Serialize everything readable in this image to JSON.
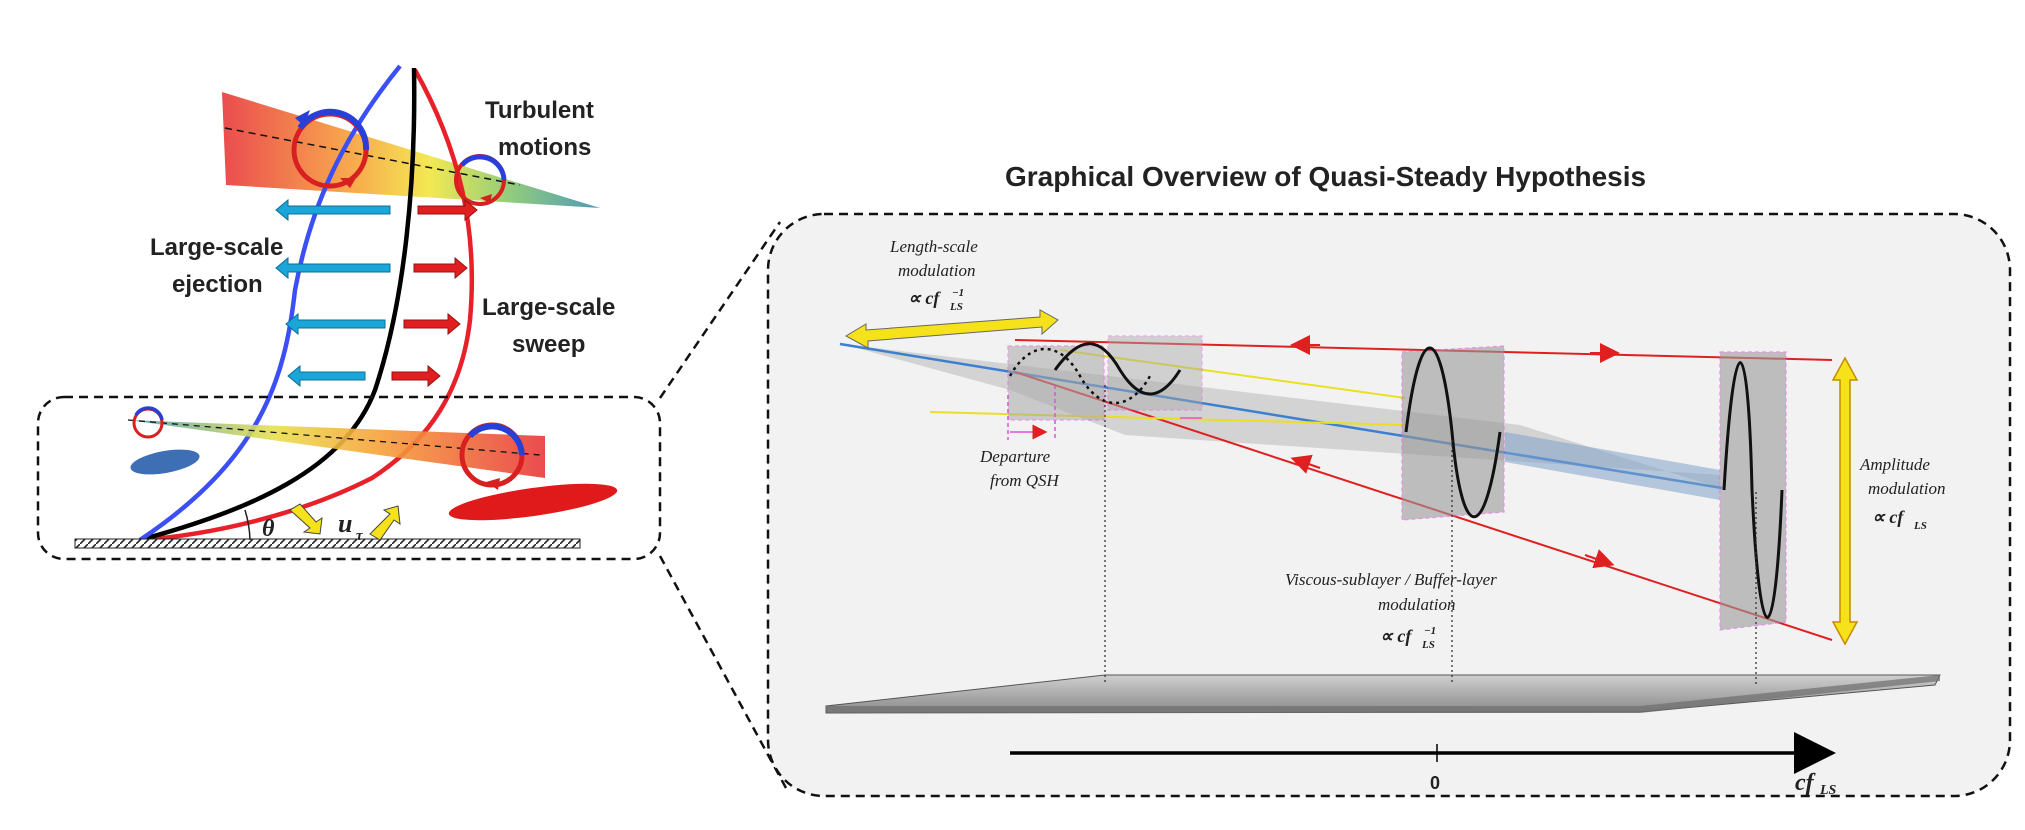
{
  "title": "Graphical Overview of Quasi-Steady Hypothesis",
  "left_panel": {
    "turbulent_motions": [
      "Turbulent",
      "motions"
    ],
    "ejection": [
      "Large-scale",
      "ejection"
    ],
    "sweep": [
      "Large-scale",
      "sweep"
    ],
    "theta": "θ",
    "u_tau": "u",
    "u_tau_sub": "τ"
  },
  "right_panel": {
    "length_scale": [
      "Length-scale",
      "modulation"
    ],
    "length_prop": "∝ cf",
    "ls_sub": "LS",
    "inv_sup": "−1",
    "departure": [
      "Departure",
      "from QSH"
    ],
    "viscous": [
      "Viscous-sublayer / Buffer-layer",
      "modulation"
    ],
    "viscous_prop": "∝ cf",
    "amplitude": [
      "Amplitude",
      "modulation"
    ],
    "amplitude_prop": "∝ cf",
    "axis_zero": "0",
    "axis_label": "cf",
    "axis_label_sub": "LS"
  },
  "colors": {
    "blue_profile": "#3b4ff5",
    "black_profile": "#000000",
    "red_profile": "#e8202a",
    "cyan_arrow": "#1aa6d8",
    "red_arrow": "#e02020",
    "yellow_arrow": "#f6e21a",
    "magenta": "#e24fe0",
    "panel_bg": "#f2f2f2"
  },
  "icons": [
    "cw-vortex-icon",
    "ccw-vortex-icon",
    "yellow-double-arrow-icon",
    "red-arrowhead-icon"
  ]
}
